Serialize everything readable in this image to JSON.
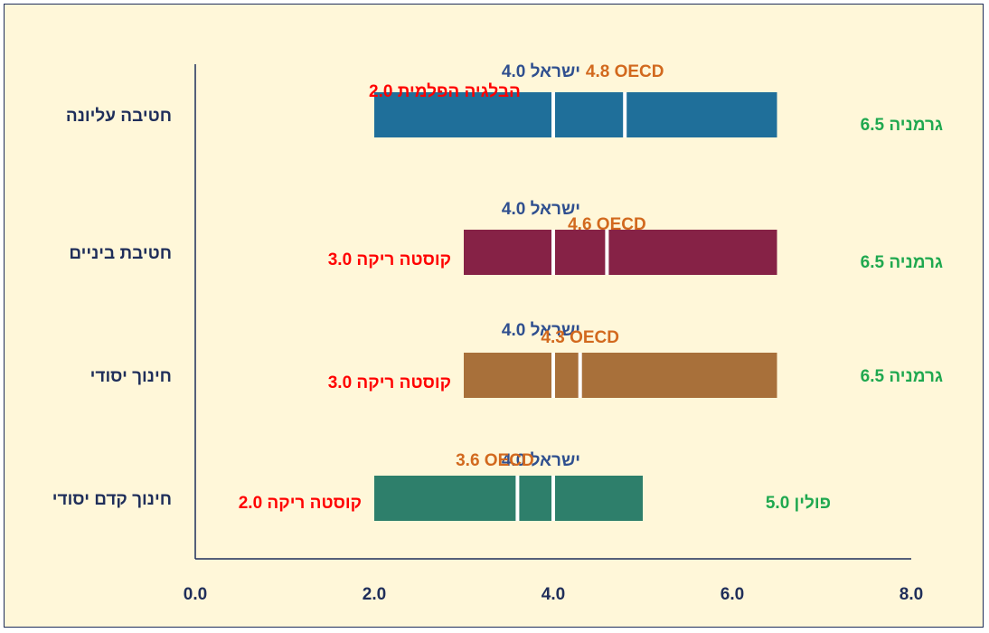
{
  "chart_data": {
    "type": "bar",
    "subtype": "floating-range",
    "xlim": [
      0,
      8
    ],
    "x_ticks": [
      "0.0",
      "2.0",
      "4.0",
      "6.0",
      "8.0"
    ],
    "grid": false,
    "colors": {
      "axis": "#1f2e5a",
      "israel_label": "#2f4f8f",
      "oecd_label": "#d2691e",
      "min_label": "#ff0000",
      "max_label": "#1fa84f",
      "divider": "#ffffff"
    },
    "categories": [
      {
        "name": "חטיבה עליונה",
        "color": "#1f6f9a",
        "min": {
          "country": "הבלגיה הפלמית",
          "value": 2.0,
          "label": "הבלגיה הפלמית 2.0"
        },
        "max": {
          "country": "גרמניה",
          "value": 6.5,
          "label": "גרמניה 6.5"
        },
        "israel": {
          "value": 4.0,
          "label": "ישראל 4.0"
        },
        "oecd": {
          "value": 4.8,
          "label": "4.8 OECD"
        }
      },
      {
        "name": "חטיבת ביניים",
        "color": "#862246",
        "min": {
          "country": "קוסטה ריקה",
          "value": 3.0,
          "label": "קוסטה ריקה 3.0"
        },
        "max": {
          "country": "גרמניה",
          "value": 6.5,
          "label": "גרמניה 6.5"
        },
        "israel": {
          "value": 4.0,
          "label": "ישראל 4.0"
        },
        "oecd": {
          "value": 4.6,
          "label": "4.6 OECD"
        }
      },
      {
        "name": "חינוך יסודי",
        "color": "#a8703a",
        "min": {
          "country": "קוסטה ריקה",
          "value": 3.0,
          "label": "קוסטה ריקה 3.0"
        },
        "max": {
          "country": "גרמניה",
          "value": 6.5,
          "label": "גרמניה 6.5"
        },
        "israel": {
          "value": 4.0,
          "label": "ישראל 4.0"
        },
        "oecd": {
          "value": 4.3,
          "label": "4.3 OECD"
        }
      },
      {
        "name": "חינוך קדם יסודי",
        "color": "#2e7f6b",
        "min": {
          "country": "קוסטה ריקה",
          "value": 2.0,
          "label": "קוסטה ריקה 2.0"
        },
        "max": {
          "country": "פולין",
          "value": 5.0,
          "label": "פולין 5.0"
        },
        "israel": {
          "value": 4.0,
          "label": "ישראל 4.0"
        },
        "oecd": {
          "value": 3.6,
          "label": "3.6 OECD"
        }
      }
    ]
  }
}
